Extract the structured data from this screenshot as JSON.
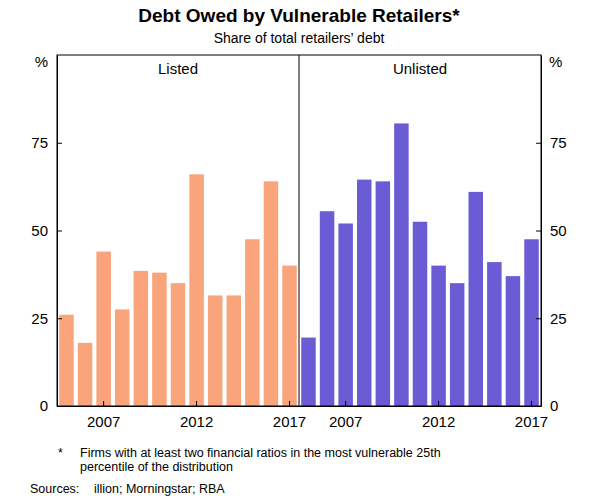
{
  "title": "Debt Owed by Vulnerable Retailers*",
  "subtitle": "Share of total retailers’ debt",
  "footnote_marker": "*",
  "footnote": [
    "Firms with at least two financial ratios in the most vulnerable 25th",
    "percentile of the distribution"
  ],
  "sources_label": "Sources:",
  "sources": "illion; Morningstar; RBA",
  "chart_data": [
    {
      "type": "bar",
      "title": "Listed",
      "y_label": "%",
      "categories": [
        null,
        null,
        "2007",
        null,
        null,
        null,
        null,
        "2012",
        null,
        null,
        null,
        null,
        "2017"
      ],
      "values": [
        26,
        18,
        44,
        27.5,
        38.5,
        38,
        35,
        66,
        31.5,
        31.5,
        47.5,
        64,
        40
      ],
      "color": "#f9a47b",
      "ylim": [
        0,
        100
      ],
      "yticks": [
        0,
        25,
        50,
        75
      ],
      "grid": false
    },
    {
      "type": "bar",
      "title": "Unlisted",
      "y_label": "%",
      "categories": [
        null,
        null,
        "2007",
        null,
        null,
        null,
        null,
        "2012",
        null,
        null,
        null,
        null,
        "2017"
      ],
      "values": [
        19.5,
        55.5,
        52,
        64.5,
        64,
        80.5,
        52.5,
        40,
        35,
        61,
        41,
        37,
        47.5
      ],
      "color": "#6b5cd6",
      "ylim": [
        0,
        100
      ],
      "yticks": [
        0,
        25,
        50,
        75
      ],
      "grid": false
    }
  ]
}
